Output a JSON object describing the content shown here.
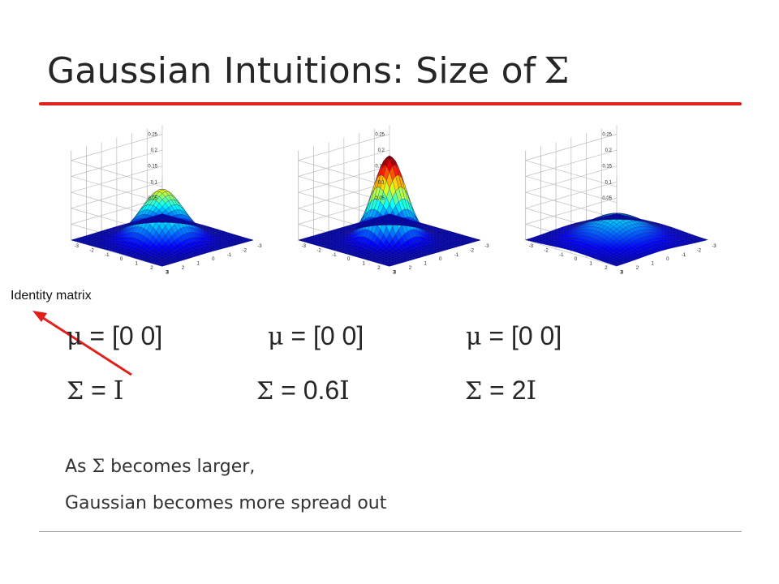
{
  "slide": {
    "title": "Gaussian Intuitions: Size of",
    "title_symbol": "Σ",
    "annotation": "Identity matrix",
    "colors": {
      "title_rule": "#e0201b",
      "arrow": "#e0201b",
      "text": "#262626"
    }
  },
  "plots": [
    {
      "mu_symbol": "μ",
      "mu_value": " = [0 0]",
      "sigma_symbol": "Σ",
      "sigma_eq": " = ",
      "sigma_coef": "",
      "sigma_matrix": "I",
      "z_ticks": [
        "0.25",
        "0.2",
        "0.15",
        "0.1",
        "0.05"
      ],
      "xy_ticks": [
        "3",
        "2",
        "1",
        "0",
        "-1",
        "-2",
        "-3"
      ],
      "peak": 0.159
    },
    {
      "mu_symbol": "μ",
      "mu_value": " = [0 0]",
      "sigma_symbol": "Σ",
      "sigma_eq": " = ",
      "sigma_coef": "0.6",
      "sigma_matrix": "I",
      "z_ticks": [
        "0.25",
        "0.2",
        "0.15",
        "0.1",
        "0.05"
      ],
      "xy_ticks": [
        "3",
        "2",
        "1",
        "0",
        "-1",
        "-2",
        "-3"
      ],
      "peak": 0.265
    },
    {
      "mu_symbol": "μ",
      "mu_value": " = [0 0]",
      "sigma_symbol": "Σ",
      "sigma_eq": " = ",
      "sigma_coef": "2",
      "sigma_matrix": "I",
      "z_ticks": [
        "0.25",
        "0.2",
        "0.15",
        "0.1",
        "0.05"
      ],
      "xy_ticks": [
        "3",
        "2",
        "1",
        "0",
        "-1",
        "-2",
        "-3"
      ],
      "peak": 0.08
    }
  ],
  "notes": {
    "line1_prefix": "As ",
    "line1_symbol": "Σ",
    "line1_suffix": " becomes larger,",
    "line2": "Gaussian becomes more spread out"
  }
}
